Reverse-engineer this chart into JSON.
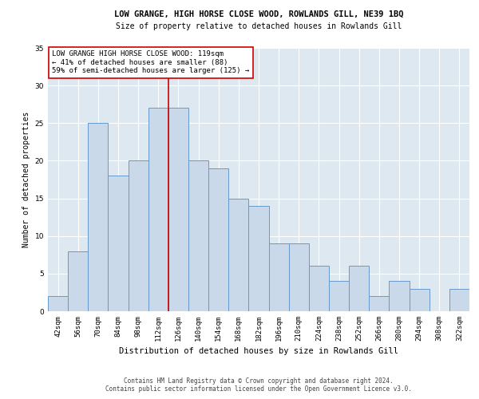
{
  "title": "LOW GRANGE, HIGH HORSE CLOSE WOOD, ROWLANDS GILL, NE39 1BQ",
  "subtitle": "Size of property relative to detached houses in Rowlands Gill",
  "xlabel": "Distribution of detached houses by size in Rowlands Gill",
  "ylabel": "Number of detached properties",
  "categories": [
    "42sqm",
    "56sqm",
    "70sqm",
    "84sqm",
    "98sqm",
    "112sqm",
    "126sqm",
    "140sqm",
    "154sqm",
    "168sqm",
    "182sqm",
    "196sqm",
    "210sqm",
    "224sqm",
    "238sqm",
    "252sqm",
    "266sqm",
    "280sqm",
    "294sqm",
    "308sqm",
    "322sqm"
  ],
  "values": [
    2,
    8,
    25,
    18,
    20,
    27,
    27,
    20,
    19,
    15,
    14,
    9,
    9,
    6,
    4,
    6,
    2,
    4,
    3,
    0,
    3
  ],
  "bar_color": "#c9d9ea",
  "bar_edge_color": "#6699cc",
  "vline_x": 5.5,
  "vline_color": "#cc0000",
  "annotation_text": "LOW GRANGE HIGH HORSE CLOSE WOOD: 119sqm\n← 41% of detached houses are smaller (88)\n59% of semi-detached houses are larger (125) →",
  "annotation_box_color": "#ffffff",
  "annotation_box_edge": "#cc0000",
  "ylim": [
    0,
    35
  ],
  "yticks": [
    0,
    5,
    10,
    15,
    20,
    25,
    30,
    35
  ],
  "background_color": "#dde8f0",
  "footer_line1": "Contains HM Land Registry data © Crown copyright and database right 2024.",
  "footer_line2": "Contains public sector information licensed under the Open Government Licence v3.0.",
  "title_fontsize": 7.5,
  "subtitle_fontsize": 7,
  "xlabel_fontsize": 7.5,
  "ylabel_fontsize": 7,
  "tick_fontsize": 6.5,
  "annotation_fontsize": 6.5,
  "footer_fontsize": 5.5
}
